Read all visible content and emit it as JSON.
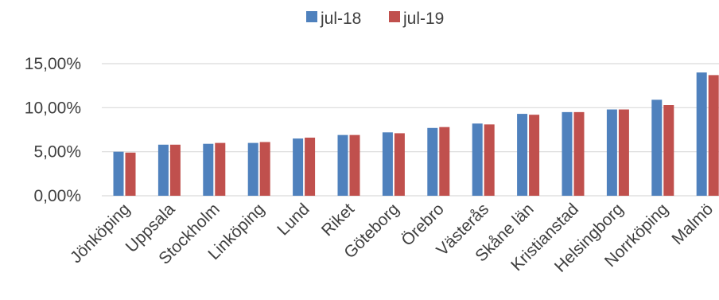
{
  "chart_data": {
    "type": "bar",
    "title": "",
    "xlabel": "",
    "ylabel": "",
    "categories": [
      "Jönköping",
      "Uppsala",
      "Stockholm",
      "Linköping",
      "Lund",
      "Riket",
      "Göteborg",
      "Örebro",
      "Västerås",
      "Skåne län",
      "Kristianstad",
      "Helsingborg",
      "Norrköping",
      "Malmö"
    ],
    "series": [
      {
        "name": "jul-18",
        "color": "#4f81bd",
        "values": [
          5.0,
          5.8,
          5.9,
          6.0,
          6.5,
          6.9,
          7.2,
          7.7,
          8.2,
          9.3,
          9.5,
          9.8,
          10.9,
          14.0
        ]
      },
      {
        "name": "jul-19",
        "color": "#c0504d",
        "values": [
          4.9,
          5.8,
          6.0,
          6.1,
          6.6,
          6.9,
          7.1,
          7.8,
          8.1,
          9.2,
          9.5,
          9.8,
          10.3,
          13.7
        ]
      }
    ],
    "ylim": [
      0,
      15
    ],
    "yticks": [
      "0,00%",
      "5,00%",
      "10,00%",
      "15,00%"
    ],
    "ytick_values": [
      0,
      5,
      10,
      15
    ],
    "grid": true,
    "legend_position": "top-center"
  }
}
